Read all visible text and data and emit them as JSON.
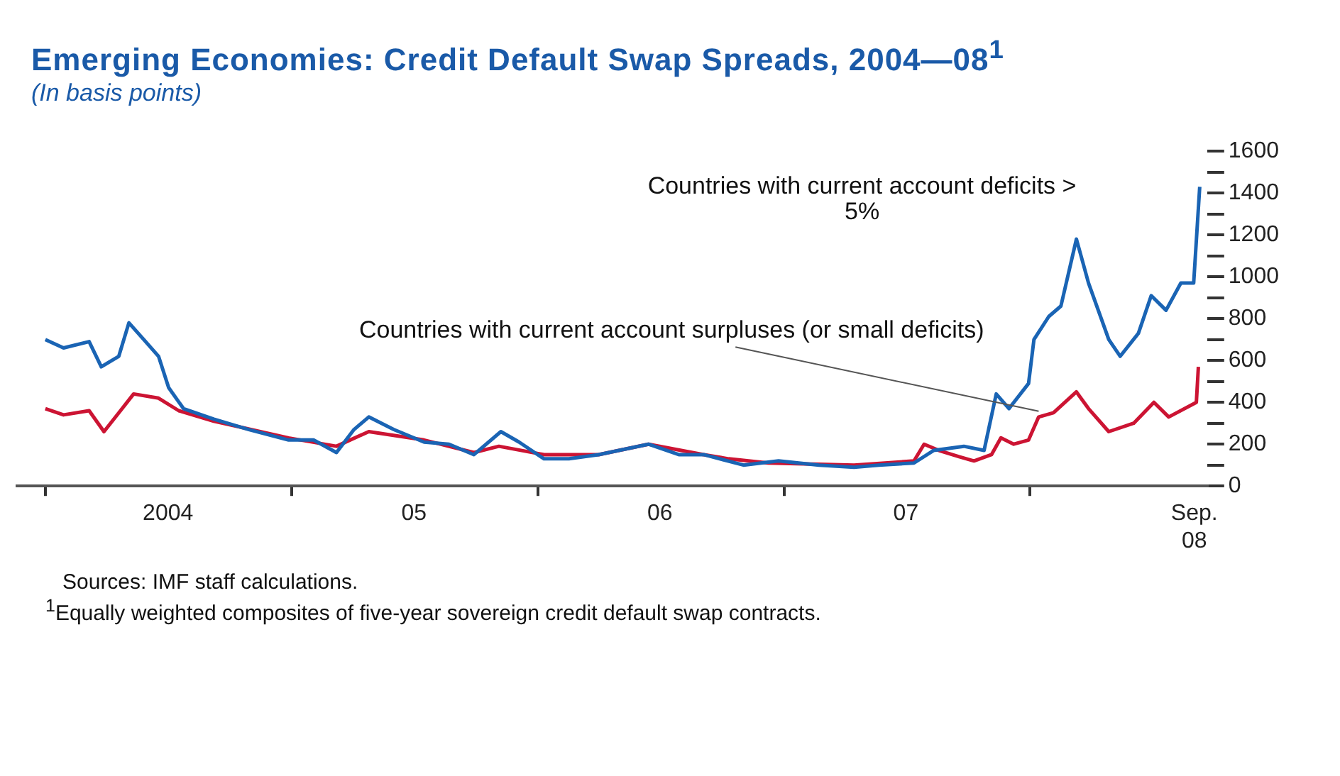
{
  "chart_data": {
    "type": "line",
    "title": "Emerging Economies: Credit Default Swap Spreads, 2004—08$^{1}$",
    "subtitle": "(In basis points)",
    "annotations": [
      "Sources: IMF staff calculations.",
      "$^{1}$Equally weighted composites of five-year sovereign credit default swap contracts."
    ],
    "xlim": [
      "2003-11-20",
      "2008-09-20"
    ],
    "xticks": [
      {
        "value": "2004-01-01",
        "label": null
      },
      {
        "value": "2004-07-01",
        "label": "2004"
      },
      {
        "value": "2005-01-01",
        "label": null
      },
      {
        "value": "2005-07-01",
        "label": "05"
      },
      {
        "value": "2006-01-01",
        "label": null
      },
      {
        "value": "2006-07-01",
        "label": "06"
      },
      {
        "value": "2007-01-01",
        "label": null
      },
      {
        "value": "2007-07-01",
        "label": "07"
      },
      {
        "value": "2008-01-01",
        "label": null
      },
      {
        "value": "2008-09-01",
        "label": "Sep. 08"
      }
    ],
    "ylim": [
      0,
      1600
    ],
    "yticks": [
      0,
      {
        "value": 100,
        "label": null
      },
      200,
      {
        "value": 300,
        "label": null
      },
      400,
      {
        "value": 500,
        "label": null
      },
      600,
      {
        "value": 700,
        "label": null
      },
      800,
      {
        "value": 900,
        "label": null
      },
      1000,
      {
        "value": 1100,
        "label": null
      },
      1200,
      {
        "value": 1300,
        "label": null
      },
      1400,
      {
        "value": 1500,
        "label": null
      },
      1600
    ],
    "grid": false,
    "legend": false,
    "marker": "none",
    "line_style": "solid",
    "series": [
      {
        "name": "Countries with current account deficits > 5%",
        "color": "#1a64b4",
        "x": [
          "2004-01-01",
          "2004-01-28",
          "2004-03-06",
          "2004-03-24",
          "2004-04-19",
          "2004-05-04",
          "2004-05-26",
          "2004-06-17",
          "2004-07-02",
          "2004-07-24",
          "2004-09-07",
          "2004-10-29",
          "2004-12-27",
          "2005-02-02",
          "2005-03-08",
          "2005-04-03",
          "2005-04-25",
          "2005-06-01",
          "2005-07-16",
          "2005-08-22",
          "2005-09-28",
          "2005-11-07",
          "2005-12-04",
          "2006-01-10",
          "2006-02-16",
          "2006-04-01",
          "2006-06-14",
          "2006-07-29",
          "2006-09-04",
          "2006-11-02",
          "2006-12-24",
          "2007-02-22",
          "2007-04-15",
          "2007-05-22",
          "2007-07-13",
          "2007-08-11",
          "2007-09-25",
          "2007-10-25",
          "2007-11-12",
          "2007-12-01",
          "2007-12-30",
          "2008-01-07",
          "2008-01-29",
          "2008-02-16",
          "2008-03-10",
          "2008-03-28",
          "2008-04-27",
          "2008-05-14",
          "2008-06-10",
          "2008-06-29",
          "2008-07-21",
          "2008-08-12",
          "2008-08-31",
          "2008-09-09"
        ],
        "values": [
          700,
          660,
          690,
          570,
          620,
          780,
          700,
          620,
          470,
          370,
          320,
          270,
          220,
          220,
          160,
          270,
          330,
          270,
          210,
          200,
          150,
          260,
          210,
          130,
          130,
          150,
          200,
          150,
          150,
          100,
          120,
          100,
          90,
          100,
          110,
          170,
          190,
          170,
          440,
          370,
          490,
          700,
          810,
          860,
          1180,
          970,
          700,
          620,
          730,
          910,
          840,
          970,
          970,
          1430
        ]
      },
      {
        "name": "Countries with current account surpluses (or small deficits)",
        "color": "#cc1433",
        "x": [
          "2004-01-01",
          "2004-01-28",
          "2004-03-06",
          "2004-03-28",
          "2004-04-19",
          "2004-05-11",
          "2004-06-17",
          "2004-07-17",
          "2004-09-07",
          "2004-12-27",
          "2005-03-08",
          "2005-04-25",
          "2005-07-16",
          "2005-09-28",
          "2005-11-04",
          "2006-01-10",
          "2006-04-01",
          "2006-06-14",
          "2006-09-04",
          "2006-10-11",
          "2006-12-09",
          "2007-04-15",
          "2007-07-13",
          "2007-07-28",
          "2007-08-19",
          "2007-09-18",
          "2007-10-10",
          "2007-11-05",
          "2007-11-19",
          "2007-12-08",
          "2007-12-30",
          "2008-01-14",
          "2008-02-05",
          "2008-03-10",
          "2008-03-28",
          "2008-04-27",
          "2008-06-03",
          "2008-07-03",
          "2008-07-25",
          "2008-09-04",
          "2008-09-07"
        ],
        "values": [
          370,
          340,
          360,
          260,
          350,
          440,
          420,
          360,
          310,
          230,
          190,
          260,
          220,
          160,
          190,
          150,
          150,
          200,
          150,
          130,
          110,
          100,
          120,
          200,
          170,
          140,
          120,
          150,
          230,
          200,
          220,
          330,
          350,
          450,
          370,
          260,
          300,
          400,
          330,
          400,
          570
        ]
      }
    ]
  }
}
